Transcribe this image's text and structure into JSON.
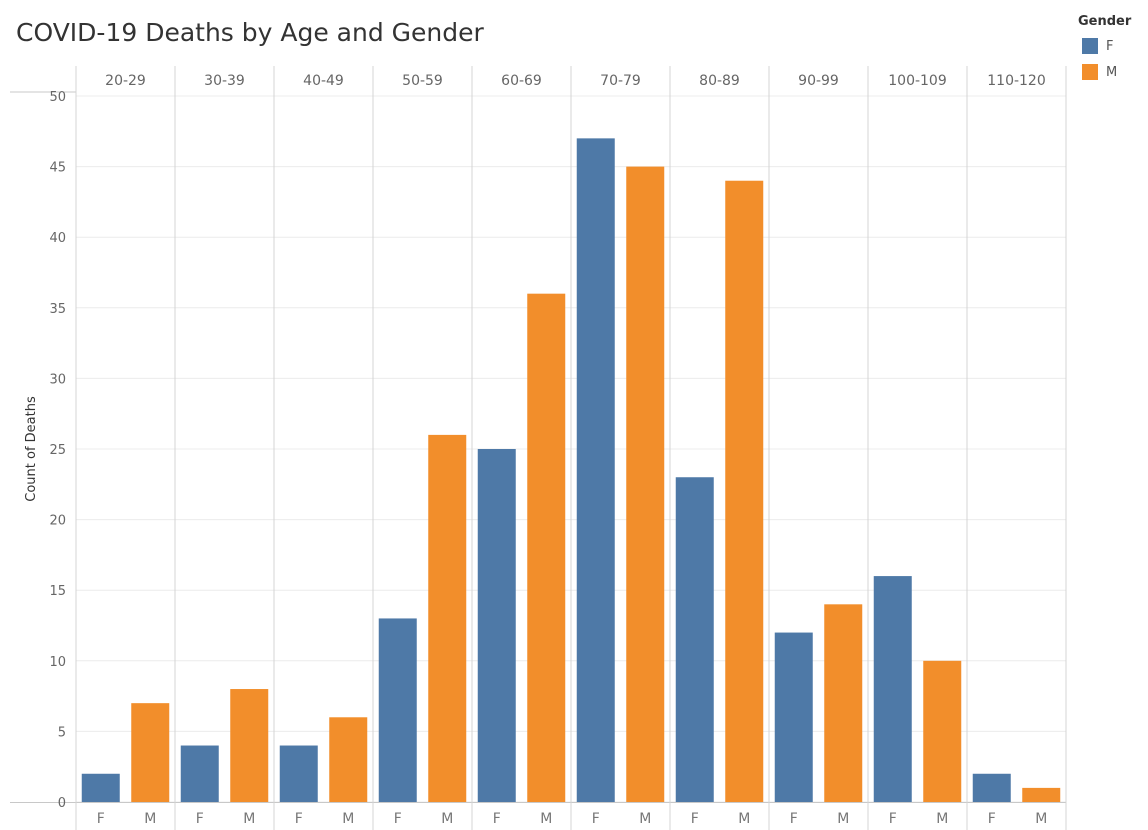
{
  "chart_data": {
    "type": "bar",
    "title": "COVID-19 Deaths by Age and Gender",
    "ylabel": "Count of Deaths",
    "xlabel": "",
    "ylim": [
      0,
      50
    ],
    "yticks": [
      0,
      5,
      10,
      15,
      20,
      25,
      30,
      35,
      40,
      45,
      50
    ],
    "grid": true,
    "legend_title": "Gender",
    "legend_position": "top-right",
    "categories": [
      "20-29",
      "30-39",
      "40-49",
      "50-59",
      "60-69",
      "70-79",
      "80-89",
      "90-99",
      "100-109",
      "110-120"
    ],
    "subcategories": [
      "F",
      "M"
    ],
    "series": [
      {
        "name": "F",
        "color": "#4e79a7",
        "values": [
          2,
          4,
          4,
          13,
          25,
          47,
          23,
          12,
          16,
          2
        ]
      },
      {
        "name": "M",
        "color": "#f28e2b",
        "values": [
          7,
          8,
          6,
          26,
          36,
          45,
          44,
          14,
          10,
          1
        ]
      }
    ]
  }
}
